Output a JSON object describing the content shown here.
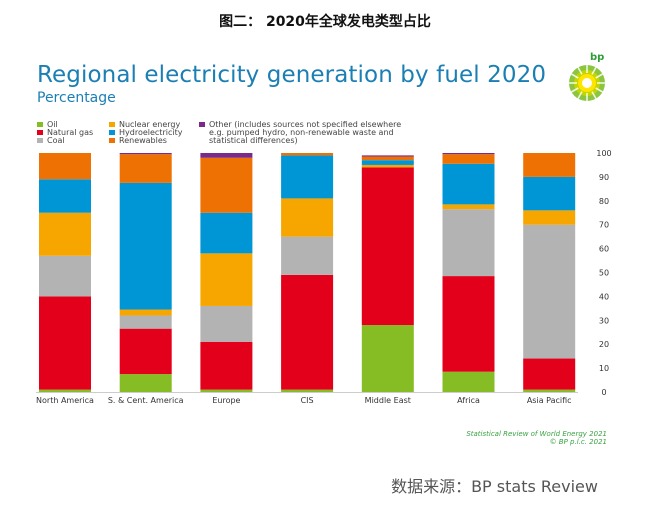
{
  "caption": "图二： 2020年全球发电类型占比",
  "logo_text": "bp",
  "credit": {
    "line1": "Statistical Review of World Energy 2021",
    "line2": "© BP p.l.c. 2021"
  },
  "source": "数据来源：BP stats Review",
  "chart_data": {
    "type": "bar",
    "stacked": true,
    "title": "Regional electricity generation by fuel 2020",
    "subtitle": "Percentage",
    "categories": [
      "North America",
      "S. & Cent. America",
      "Europe",
      "CIS",
      "Middle East",
      "Africa",
      "Asia Pacific"
    ],
    "series": [
      {
        "name": "Oil",
        "color": "#86bd24",
        "values": [
          1,
          7.5,
          1,
          1,
          28,
          8.5,
          1
        ]
      },
      {
        "name": "Natural gas",
        "color": "#e3001b",
        "values": [
          39,
          19,
          20,
          48,
          66,
          40,
          13
        ]
      },
      {
        "name": "Coal",
        "color": "#b3b3b3",
        "values": [
          17,
          5.5,
          15,
          16,
          0,
          28,
          56
        ]
      },
      {
        "name": "Nuclear energy",
        "color": "#f7a600",
        "values": [
          18,
          2.5,
          22,
          16,
          1,
          2,
          6
        ]
      },
      {
        "name": "Hydroelectricity",
        "color": "#0096d6",
        "values": [
          14,
          53,
          17,
          18,
          2,
          17,
          14
        ]
      },
      {
        "name": "Renewables",
        "color": "#ee7203",
        "values": [
          11,
          12,
          23,
          1,
          1.5,
          4,
          10
        ]
      },
      {
        "name": "Other (includes sources not specified elsewhere e.g. pumped hydro, non-renewable waste and statistical differences)",
        "color": "#7a2a88",
        "values": [
          0,
          0.5,
          2,
          0,
          0.5,
          0.5,
          0
        ]
      }
    ],
    "legend": {
      "col1": [
        "Oil",
        "Natural gas",
        "Coal"
      ],
      "col2": [
        "Nuclear energy",
        "Hydroelectricity",
        "Renewables"
      ],
      "col3": [
        "Other (includes sources not specified elsewhere",
        "e.g. pumped hydro, non-renewable waste and",
        "statistical differences)"
      ]
    },
    "ylim": [
      0,
      100
    ],
    "yticks": [
      0,
      10,
      20,
      30,
      40,
      50,
      60,
      70,
      80,
      90,
      100
    ],
    "axis_side": "right",
    "grid": false
  }
}
